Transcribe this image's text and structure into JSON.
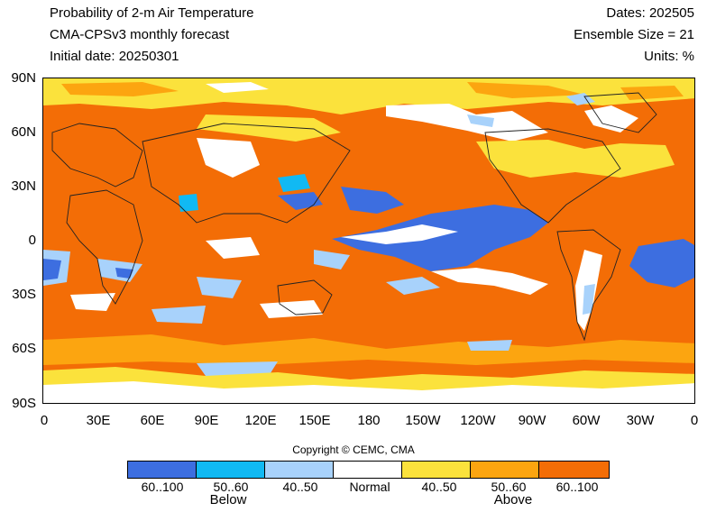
{
  "header": {
    "title": "Probability of 2-m Air Temperature",
    "model": "CMA-CPSv3 monthly forecast",
    "initial_date": "Initial date: 20250301",
    "dates": "Dates: 202505",
    "ensemble": "Ensemble Size = 21",
    "units": "Units: %"
  },
  "map": {
    "y_ticks": [
      "90N",
      "60N",
      "30N",
      "0",
      "30S",
      "60S",
      "90S"
    ],
    "x_ticks": [
      "0",
      "30E",
      "60E",
      "90E",
      "120E",
      "150E",
      "180",
      "150W",
      "120W",
      "90W",
      "60W",
      "30W",
      "0"
    ],
    "colors": {
      "above_high": "#f36d06",
      "above_mid": "#fca510",
      "above_low": "#fbe23c",
      "normal": "#ffffff",
      "below_low": "#a8d2fb",
      "below_mid": "#11b9f3",
      "below_high": "#3d6ee0"
    }
  },
  "copyright": "Copyright © CEMC, CMA",
  "legend": {
    "items": [
      {
        "label": "60..100",
        "color": "#3d6ee0"
      },
      {
        "label": "50..60",
        "color": "#11b9f3"
      },
      {
        "label": "40..50",
        "color": "#a8d2fb"
      },
      {
        "label": "Normal",
        "color": "#ffffff"
      },
      {
        "label": "40..50",
        "color": "#fbe23c"
      },
      {
        "label": "50..60",
        "color": "#fca510"
      },
      {
        "label": "60..100",
        "color": "#f36d06"
      }
    ],
    "below_label": "Below",
    "above_label": "Above"
  }
}
